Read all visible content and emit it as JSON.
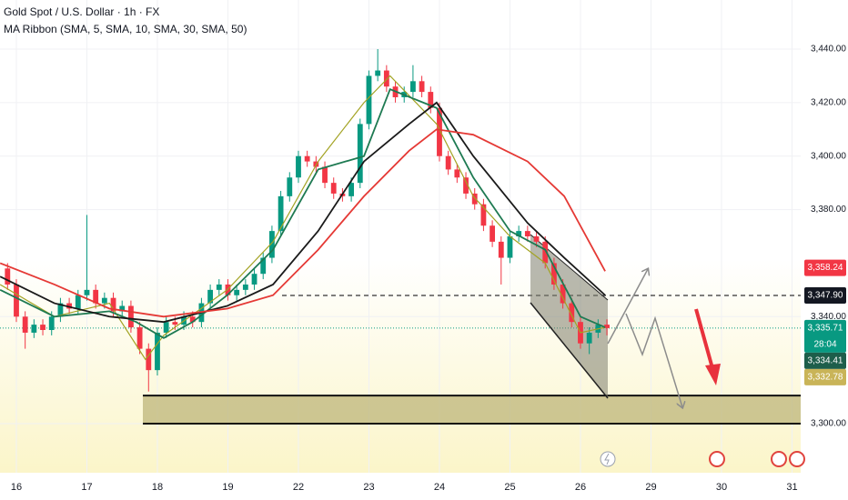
{
  "chart_data": {
    "type": "candlestick",
    "title": "Gold Spot / U.S. Dollar · 1h · FX",
    "subtitle": "MA Ribbon (SMA, 5, SMA, 10, SMA, 30, SMA, 50)",
    "x": [
      -0.125,
      0,
      0.125,
      0.25,
      0.375,
      0.5,
      0.625,
      0.75,
      0.875,
      1,
      1.125,
      1.25,
      1.375,
      1.5,
      1.625,
      1.75,
      1.875,
      2,
      2.125,
      2.25,
      2.375,
      2.5,
      2.625,
      2.75,
      2.875,
      3,
      3.125,
      3.25,
      3.375,
      3.5,
      3.625,
      3.75,
      3.875,
      4,
      4.125,
      4.25,
      4.375,
      4.5,
      4.625,
      4.75,
      4.875,
      5,
      5.125,
      5.25,
      5.375,
      5.5,
      5.625,
      5.75,
      5.875,
      6,
      6.125,
      6.25,
      6.375,
      6.5,
      6.625,
      6.75,
      6.875,
      7,
      7.125,
      7.25,
      7.375,
      7.5,
      7.625,
      7.75,
      7.875,
      8,
      8.125,
      8.25,
      8.375
    ],
    "open": [
      3358,
      3352,
      3340,
      3334,
      3337,
      3335,
      3340,
      3345,
      3343,
      3348,
      3350,
      3345,
      3347,
      3342,
      3344,
      3336,
      3328,
      3320,
      3334,
      3338,
      3337,
      3340,
      3338,
      3345,
      3350,
      3352,
      3348,
      3350,
      3352,
      3356,
      3362,
      3372,
      3385,
      3392,
      3400,
      3398,
      3396,
      3390,
      3386,
      3385,
      3390,
      3412,
      3430,
      3432,
      3426,
      3422,
      3424,
      3428,
      3424,
      3418,
      3400,
      3395,
      3392,
      3386,
      3382,
      3374,
      3368,
      3362,
      3370,
      3372,
      3370,
      3368,
      3360,
      3352,
      3345,
      3338,
      3330,
      3334,
      3337
    ],
    "high": [
      3360,
      3354,
      3342,
      3339,
      3339,
      3342,
      3347,
      3347,
      3350,
      3378,
      3352,
      3349,
      3349,
      3346,
      3346,
      3338,
      3330,
      3336,
      3340,
      3340,
      3342,
      3342,
      3347,
      3352,
      3354,
      3354,
      3352,
      3354,
      3358,
      3364,
      3374,
      3387,
      3394,
      3402,
      3402,
      3400,
      3398,
      3392,
      3388,
      3392,
      3414,
      3432,
      3440,
      3434,
      3428,
      3426,
      3434,
      3430,
      3426,
      3420,
      3402,
      3397,
      3394,
      3388,
      3384,
      3376,
      3370,
      3372,
      3374,
      3374,
      3372,
      3370,
      3362,
      3354,
      3347,
      3340,
      3336,
      3339,
      3339
    ],
    "low": [
      3350,
      3338,
      3328,
      3332,
      3333,
      3333,
      3338,
      3341,
      3341,
      3346,
      3343,
      3343,
      3340,
      3340,
      3334,
      3326,
      3312,
      3318,
      3332,
      3335,
      3335,
      3336,
      3336,
      3343,
      3348,
      3346,
      3346,
      3348,
      3350,
      3354,
      3360,
      3370,
      3383,
      3390,
      3396,
      3394,
      3388,
      3384,
      3383,
      3383,
      3388,
      3410,
      3428,
      3424,
      3420,
      3420,
      3422,
      3422,
      3416,
      3398,
      3393,
      3390,
      3384,
      3380,
      3372,
      3366,
      3352,
      3360,
      3368,
      3368,
      3366,
      3358,
      3350,
      3343,
      3336,
      3328,
      3326,
      3332,
      3333
    ],
    "close": [
      3352,
      3340,
      3334,
      3337,
      3335,
      3340,
      3345,
      3343,
      3348,
      3350,
      3345,
      3347,
      3342,
      3344,
      3336,
      3328,
      3320,
      3334,
      3338,
      3337,
      3340,
      3338,
      3345,
      3350,
      3352,
      3348,
      3350,
      3352,
      3356,
      3362,
      3372,
      3385,
      3392,
      3400,
      3398,
      3396,
      3390,
      3386,
      3385,
      3390,
      3412,
      3430,
      3432,
      3426,
      3422,
      3424,
      3428,
      3424,
      3418,
      3400,
      3395,
      3392,
      3386,
      3382,
      3374,
      3368,
      3362,
      3370,
      3372,
      3370,
      3368,
      3360,
      3352,
      3345,
      3338,
      3330,
      3334,
      3337,
      3335.71
    ],
    "up_color": "#089981",
    "down_color": "#f23645",
    "moving_averages": [
      {
        "color": "#a3a323",
        "x": [
          -0.23,
          0.54,
          1.32,
          1.83,
          2.09,
          2.99,
          3.64,
          4.28,
          4.93,
          5.3,
          5.96,
          6.48,
          7.0,
          7.5,
          8.0,
          8.35
        ],
        "values": [
          3352,
          3340,
          3345,
          3324,
          3333,
          3350,
          3368,
          3398,
          3420,
          3430,
          3412,
          3385,
          3370,
          3360,
          3334,
          3336
        ]
      },
      {
        "color": "#1e7a52",
        "x": [
          -0.23,
          0.54,
          1.32,
          1.7,
          2.09,
          2.5,
          2.99,
          3.64,
          4.28,
          4.93,
          5.3,
          5.96,
          6.48,
          7.0,
          7.5,
          8.0,
          8.35
        ],
        "values": [
          3350,
          3340,
          3342,
          3338,
          3332,
          3338,
          3348,
          3365,
          3395,
          3400,
          3425,
          3418,
          3392,
          3372,
          3365,
          3340,
          3336
        ]
      },
      {
        "color": "#1a1a1a",
        "x": [
          -0.23,
          0.54,
          1.32,
          2.09,
          2.99,
          3.64,
          4.28,
          4.93,
          5.57,
          5.96,
          6.48,
          7.25,
          7.77,
          8.35
        ],
        "values": [
          3355,
          3345,
          3340,
          3338,
          3344,
          3352,
          3372,
          3398,
          3412,
          3420,
          3400,
          3375,
          3362,
          3348
        ]
      },
      {
        "color": "#e53935",
        "x": [
          -0.23,
          0.54,
          1.32,
          2.09,
          2.99,
          3.64,
          4.28,
          4.93,
          5.57,
          5.96,
          6.48,
          7.25,
          7.77,
          8.35
        ],
        "values": [
          3360,
          3352,
          3343,
          3340,
          3343,
          3348,
          3365,
          3385,
          3402,
          3410,
          3408,
          3398,
          3385,
          3357
        ]
      }
    ],
    "xlim": [
      -0.232,
      11.123
    ],
    "xticks": [
      {
        "value": 0,
        "label": "16"
      },
      {
        "value": 1,
        "label": "17"
      },
      {
        "value": 2,
        "label": "18"
      },
      {
        "value": 3,
        "label": "19"
      },
      {
        "value": 4,
        "label": "22"
      },
      {
        "value": 5,
        "label": "23"
      },
      {
        "value": 6,
        "label": "24"
      },
      {
        "value": 7,
        "label": "25"
      },
      {
        "value": 8,
        "label": "26"
      },
      {
        "value": 9,
        "label": "29"
      },
      {
        "value": 10,
        "label": "30"
      },
      {
        "value": 11,
        "label": "31"
      }
    ],
    "ylim": [
      3281.65,
      3458.35
    ],
    "yticks": [
      {
        "value": 3440,
        "label": "3,440.00"
      },
      {
        "value": 3420,
        "label": "3,420.00"
      },
      {
        "value": 3400,
        "label": "3,400.00"
      },
      {
        "value": 3380,
        "label": "3,380.00"
      },
      {
        "value": 3340,
        "label": "3,340.00"
      },
      {
        "value": 3300,
        "label": "3,300.00"
      }
    ],
    "grid": true,
    "price_badges": [
      {
        "value": 3358.24,
        "label": "3,358.24",
        "color": "#f23645"
      },
      {
        "value": 3347.9,
        "label": "3,347.90",
        "color": "#131722"
      },
      {
        "value": 3335.71,
        "label": "3,335.71",
        "color": "#089981"
      },
      {
        "value": 3334.41,
        "label": "3,334.41",
        "color": "#1d5e4b"
      },
      {
        "value": 3332.78,
        "label": "3,332.78",
        "color": "#c9b458"
      }
    ],
    "countdown": "28:04",
    "reference_line": 3347.9,
    "support_zone": {
      "low": 3300,
      "high": 3310.5
    }
  }
}
